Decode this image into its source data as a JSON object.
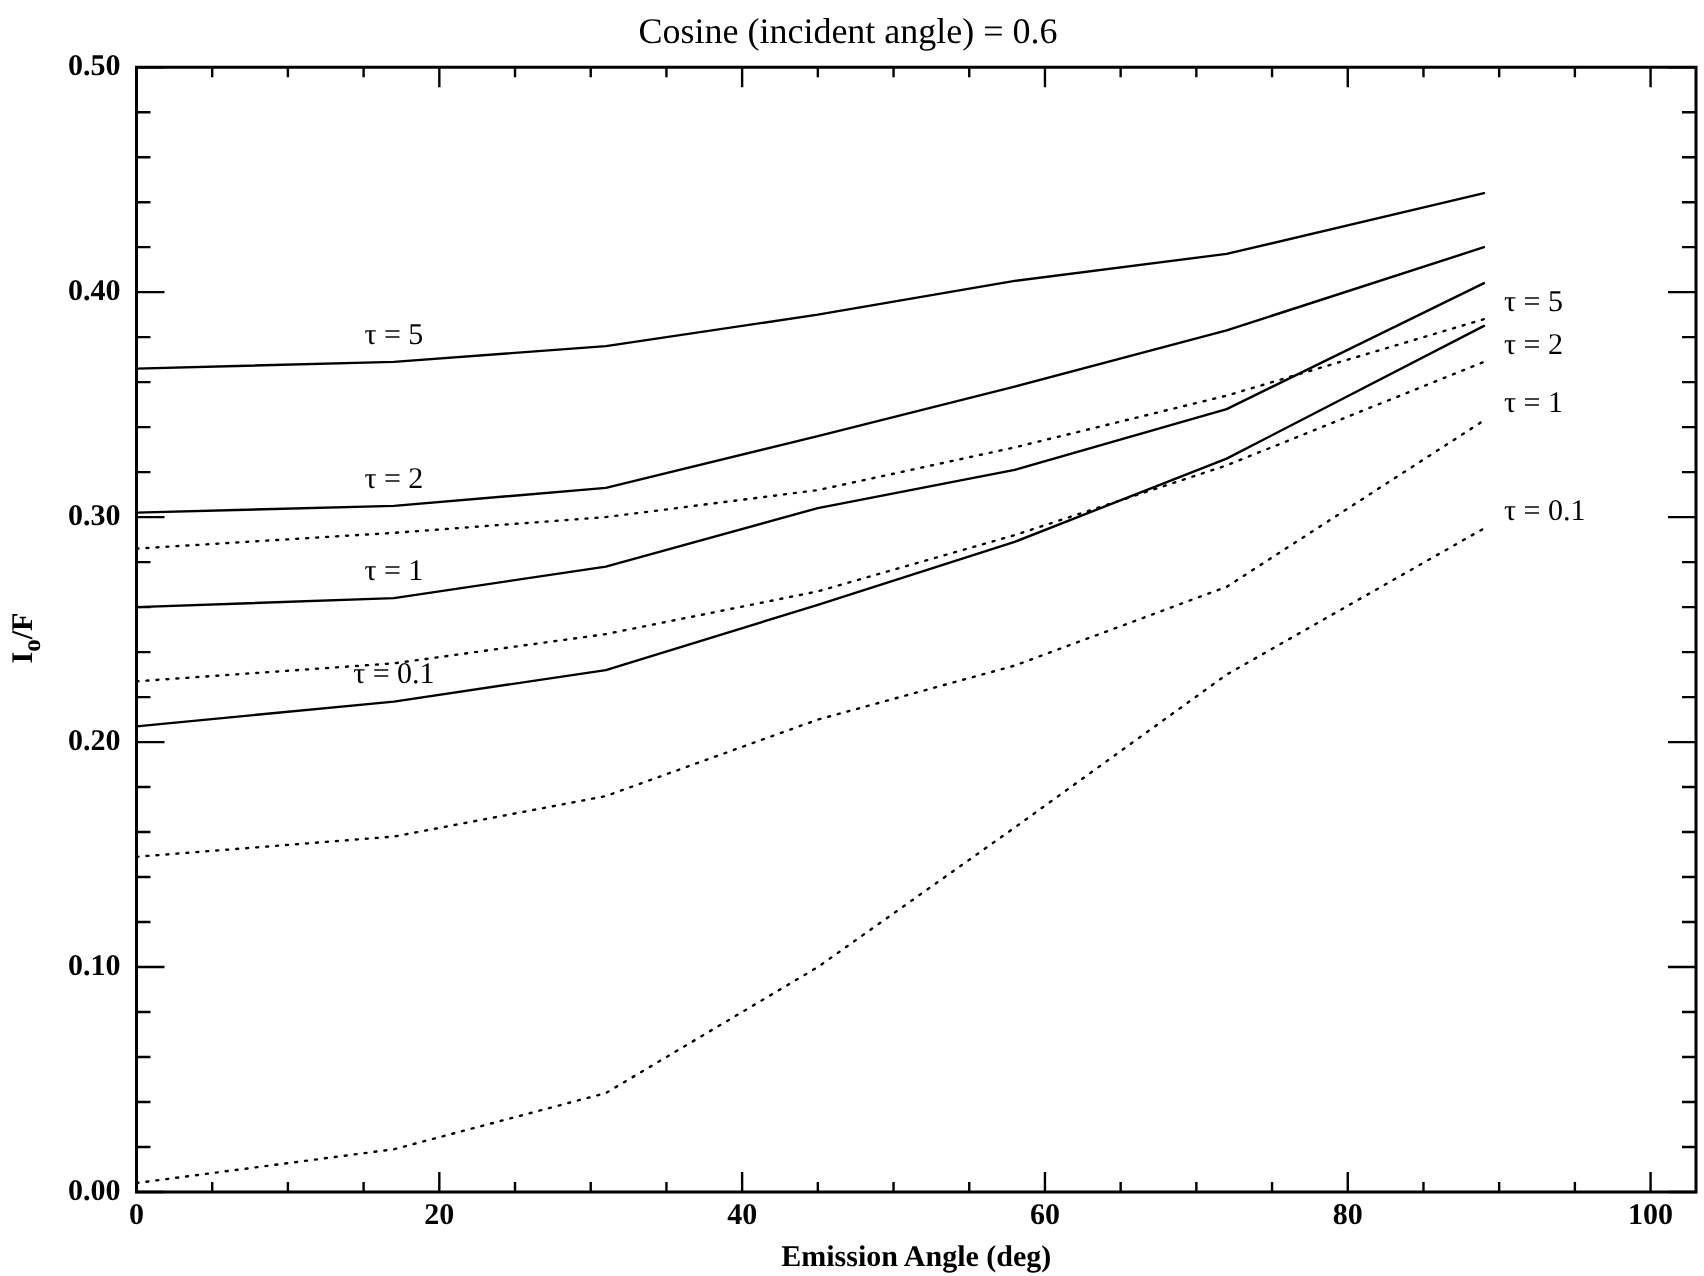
{
  "chart_data": {
    "type": "line",
    "title": "Cosine (incident angle) = 0.6",
    "xlabel": "Emission Angle (deg)",
    "ylabel": "I$_{o}$/F",
    "x": [
      0,
      17,
      31,
      45,
      58,
      72,
      89
    ],
    "series": [
      {
        "name": "τ = 5",
        "color": "#000000",
        "line_style": "solid",
        "values": [
          0.366,
          0.369,
          0.376,
          0.39,
          0.405,
          0.417,
          0.444
        ]
      },
      {
        "name": "τ = 2",
        "color": "#000000",
        "line_style": "solid",
        "values": [
          0.302,
          0.305,
          0.313,
          0.336,
          0.358,
          0.383,
          0.42
        ]
      },
      {
        "name": "τ = 1",
        "color": "#000000",
        "line_style": "solid",
        "values": [
          0.26,
          0.264,
          0.278,
          0.304,
          0.321,
          0.348,
          0.404
        ]
      },
      {
        "name": "τ = 0.1",
        "color": "#000000",
        "line_style": "solid",
        "values": [
          0.207,
          0.218,
          0.232,
          0.261,
          0.289,
          0.326,
          0.385
        ]
      },
      {
        "name": "τ = 5",
        "color": "#000000",
        "line_style": "dotted",
        "values": [
          0.286,
          0.293,
          0.3,
          0.312,
          0.331,
          0.354,
          0.388
        ]
      },
      {
        "name": "τ = 2",
        "color": "#000000",
        "line_style": "dotted",
        "values": [
          0.227,
          0.235,
          0.248,
          0.267,
          0.292,
          0.323,
          0.369
        ]
      },
      {
        "name": "τ = 1",
        "color": "#000000",
        "line_style": "dotted",
        "values": [
          0.149,
          0.158,
          0.176,
          0.21,
          0.234,
          0.269,
          0.343
        ]
      },
      {
        "name": "τ = 0.1",
        "color": "#000000",
        "line_style": "dotted",
        "values": [
          0.004,
          0.019,
          0.044,
          0.1,
          0.162,
          0.23,
          0.295
        ]
      }
    ],
    "xlim": [
      0,
      103
    ],
    "xticks": [
      0,
      {
        "value": 5,
        "label": null
      },
      {
        "value": 10,
        "label": null
      },
      {
        "value": 15,
        "label": null
      },
      20,
      {
        "value": 25,
        "label": null
      },
      {
        "value": 30,
        "label": null
      },
      {
        "value": 35,
        "label": null
      },
      40,
      {
        "value": 45,
        "label": null
      },
      {
        "value": 50,
        "label": null
      },
      {
        "value": 55,
        "label": null
      },
      60,
      {
        "value": 65,
        "label": null
      },
      {
        "value": 70,
        "label": null
      },
      {
        "value": 75,
        "label": null
      },
      80,
      {
        "value": 85,
        "label": null
      },
      {
        "value": 90,
        "label": null
      },
      {
        "value": 95,
        "label": null
      },
      100
    ],
    "ylim": [
      0,
      0.5
    ],
    "yticks": [
      {
        "value": 0,
        "label": "0.00"
      },
      {
        "value": 0.02,
        "label": null
      },
      {
        "value": 0.04,
        "label": null
      },
      {
        "value": 0.06,
        "label": null
      },
      {
        "value": 0.08,
        "label": null
      },
      {
        "value": 0.1,
        "label": "0.10"
      },
      {
        "value": 0.12,
        "label": null
      },
      {
        "value": 0.14,
        "label": null
      },
      {
        "value": 0.16,
        "label": null
      },
      {
        "value": 0.18,
        "label": null
      },
      {
        "value": 0.2,
        "label": "0.20"
      },
      {
        "value": 0.22,
        "label": null
      },
      {
        "value": 0.24,
        "label": null
      },
      {
        "value": 0.26,
        "label": null
      },
      {
        "value": 0.28,
        "label": null
      },
      {
        "value": 0.3,
        "label": "0.30"
      },
      {
        "value": 0.32,
        "label": null
      },
      {
        "value": 0.34,
        "label": null
      },
      {
        "value": 0.36,
        "label": null
      },
      {
        "value": 0.38,
        "label": null
      },
      {
        "value": 0.4,
        "label": "0.40"
      },
      {
        "value": 0.42,
        "label": null
      },
      {
        "value": 0.44,
        "label": null
      },
      {
        "value": 0.46,
        "label": null
      },
      {
        "value": 0.48,
        "label": null
      },
      {
        "value": 0.5,
        "label": "0.50"
      }
    ],
    "grid": false,
    "legend": false,
    "marker": "none"
  }
}
